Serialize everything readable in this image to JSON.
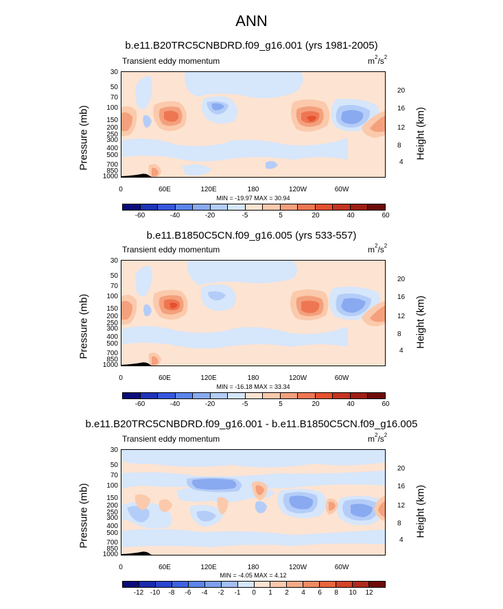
{
  "page_title": "ANN",
  "chart_data": [
    {
      "type": "contour",
      "title": "b.e11.B20TRC5CNBDRD.f09_g16.001 (yrs 1981-2005)",
      "subtitle": "Transient eddy momentum",
      "units_base": "m",
      "units_sup1": "2",
      "units_mid": "/s",
      "units_sup2": "2",
      "ylabel": "Pressure (mb)",
      "ylabel_right": "Height (km)",
      "yticks": [
        "30",
        "50",
        "70",
        "100",
        "150",
        "200",
        "250",
        "300",
        "400",
        "500",
        "700",
        "850",
        "1000"
      ],
      "yticks_right": [
        "20",
        "16",
        "12",
        "8",
        "4"
      ],
      "xticks": [
        "0",
        "60E",
        "120E",
        "180",
        "120W",
        "60W"
      ],
      "minmax_text": "MIN = -19.97  MAX = 30.94",
      "min": -19.97,
      "max": 30.94,
      "colorbar_labels": [
        "-60",
        "-40",
        "-20",
        "-5",
        "5",
        "20",
        "40",
        "60"
      ]
    },
    {
      "type": "contour",
      "title": "b.e11.B1850C5CN.f09_g16.005 (yrs 533-557)",
      "subtitle": "Transient eddy momentum",
      "units_base": "m",
      "units_sup1": "2",
      "units_mid": "/s",
      "units_sup2": "2",
      "ylabel": "Pressure (mb)",
      "ylabel_right": "Height (km)",
      "yticks": [
        "30",
        "50",
        "70",
        "100",
        "150",
        "200",
        "250",
        "300",
        "400",
        "500",
        "700",
        "850",
        "1000"
      ],
      "yticks_right": [
        "20",
        "16",
        "12",
        "8",
        "4"
      ],
      "xticks": [
        "0",
        "60E",
        "120E",
        "180",
        "120W",
        "60W"
      ],
      "minmax_text": "MIN = -16.18  MAX = 33.34",
      "min": -16.18,
      "max": 33.34,
      "colorbar_labels": [
        "-60",
        "-40",
        "-20",
        "-5",
        "5",
        "20",
        "40",
        "60"
      ]
    },
    {
      "type": "contour",
      "title": "b.e11.B20TRC5CNBDRD.f09_g16.001 - b.e11.B1850C5CN.f09_g16.005",
      "subtitle": "Transient eddy momentum",
      "units_base": "m",
      "units_sup1": "2",
      "units_mid": "/s",
      "units_sup2": "2",
      "ylabel": "Pressure (mb)",
      "ylabel_right": "Height (km)",
      "yticks": [
        "30",
        "50",
        "70",
        "100",
        "150",
        "200",
        "250",
        "300",
        "400",
        "500",
        "700",
        "850",
        "1000"
      ],
      "yticks_right": [
        "20",
        "16",
        "12",
        "8",
        "4"
      ],
      "xticks": [
        "0",
        "60E",
        "120E",
        "180",
        "120W",
        "60W"
      ],
      "minmax_text": "MIN = -4.05  MAX = 4.12",
      "min": -4.05,
      "max": 4.12,
      "colorbar_labels": [
        "-12",
        "-10",
        "-8",
        "-6",
        "-4",
        "-2",
        "-1",
        "0",
        "1",
        "2",
        "4",
        "6",
        "8",
        "10",
        "12"
      ]
    }
  ],
  "colors": {
    "palette": [
      "#0b0b7a",
      "#1f33b8",
      "#3557de",
      "#5c84ea",
      "#89aaf0",
      "#b4cdf8",
      "#d6e6fb",
      "#fde3d1",
      "#fbc9ab",
      "#f4a07c",
      "#ee7652",
      "#e5502f",
      "#c43421",
      "#9e1e14",
      "#6e0a0a"
    ],
    "background_pos": "#fde3d1",
    "background_neg": "#d6e6fb",
    "topography": "#000000"
  }
}
